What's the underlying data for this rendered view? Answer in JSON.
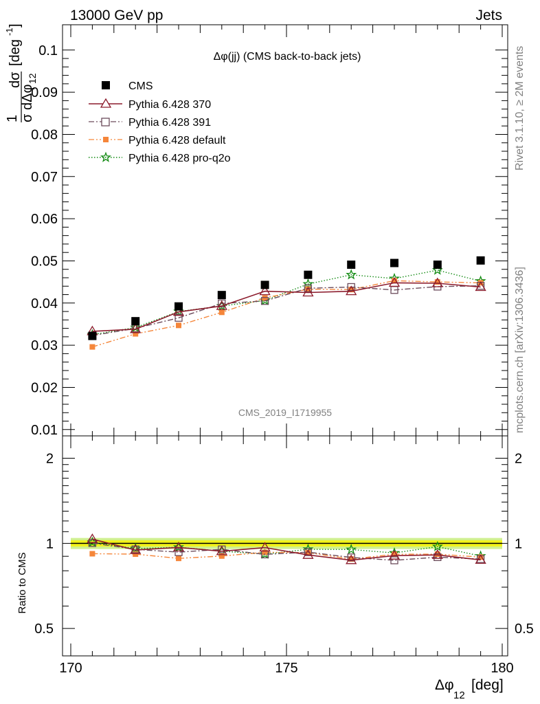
{
  "header": {
    "left": "13000 GeV pp",
    "right": "Jets",
    "side_top": "Rivet 3.1.10, ≥ 2M events",
    "side_bottom": "mcplots.cern.ch [arXiv:1306.3436]",
    "analysis_id": "CMS_2019_I1719955"
  },
  "legend_title": "Δφ(jj) (CMS back-to-back jets)",
  "colors": {
    "cms": "#000000",
    "p370": "#8b1a2b",
    "p391": "#6b4a5a",
    "pdefault": "#f5863a",
    "pq2o": "#128a12",
    "band_inner": "#f2f21a",
    "band_outer": "#d0f090"
  },
  "chart_data": [
    {
      "type": "scatter",
      "panel": "main",
      "ylabel": "1/σ dσ/dΔφ12 [deg⁻¹]",
      "xlim": [
        170,
        180
      ],
      "ylim": [
        0.0085,
        0.106
      ],
      "yticks": [
        0.01,
        0.02,
        0.03,
        0.04,
        0.05,
        0.06,
        0.07,
        0.08,
        0.09,
        0.1
      ],
      "ytick_labels": [
        "0.01",
        "0.02",
        "0.03",
        "0.04",
        "0.05",
        "0.06",
        "0.07",
        "0.08",
        "0.09",
        "0.1"
      ],
      "x": [
        170.5,
        171.5,
        172.5,
        173.5,
        174.5,
        175.5,
        176.5,
        177.5,
        178.5,
        179.5
      ],
      "legend_position": "top-left",
      "series": [
        {
          "name": "CMS",
          "key": "cms",
          "marker": "square-filled",
          "line": "none",
          "values": [
            0.0322,
            0.0357,
            0.0392,
            0.0419,
            0.0443,
            0.0467,
            0.0491,
            0.0495,
            0.0491,
            0.0501
          ]
        },
        {
          "name": "Pythia 6.428 370",
          "key": "p370",
          "marker": "triangle-open",
          "line": "solid",
          "values": [
            0.0333,
            0.0338,
            0.0379,
            0.0393,
            0.0428,
            0.0425,
            0.0428,
            0.0448,
            0.0447,
            0.0438
          ]
        },
        {
          "name": "Pythia 6.428 391",
          "key": "p391",
          "marker": "square-open",
          "line": "dashdot",
          "values": [
            0.0323,
            0.034,
            0.0365,
            0.0399,
            0.0405,
            0.0435,
            0.0438,
            0.0431,
            0.0439,
            0.0441
          ]
        },
        {
          "name": "Pythia 6.428 default",
          "key": "pdefault",
          "marker": "square-small",
          "line": "dashdot2",
          "values": [
            0.0296,
            0.0327,
            0.0347,
            0.0378,
            0.0412,
            0.0433,
            0.0432,
            0.0453,
            0.045,
            0.0448
          ]
        },
        {
          "name": "Pythia 6.428 pro-q2o",
          "key": "pq2o",
          "marker": "star",
          "line": "dotted",
          "values": [
            0.0325,
            0.0342,
            0.038,
            0.0393,
            0.0406,
            0.0445,
            0.0467,
            0.0458,
            0.0478,
            0.0452
          ]
        }
      ]
    },
    {
      "type": "line",
      "panel": "ratio",
      "ylabel": "Ratio to CMS",
      "xlabel": "Δφ12 [deg]",
      "xlim": [
        170,
        180
      ],
      "ylim": [
        0.4,
        2.4
      ],
      "yscale": "log",
      "yticks": [
        0.5,
        1,
        2
      ],
      "ytick_labels": [
        "0.5",
        "1",
        "2"
      ],
      "xticks": [
        170,
        175,
        180
      ],
      "xtick_labels": [
        "170",
        "175",
        "180"
      ],
      "x": [
        170.5,
        171.5,
        172.5,
        173.5,
        174.5,
        175.5,
        176.5,
        177.5,
        178.5,
        179.5
      ],
      "band_inner": [
        0.975,
        1.025
      ],
      "band_outer": [
        0.955,
        1.045
      ],
      "series": [
        {
          "key": "p370",
          "values": [
            1.035,
            0.947,
            0.967,
            0.938,
            0.966,
            0.91,
            0.872,
            0.905,
            0.91,
            0.874
          ]
        },
        {
          "key": "p391",
          "values": [
            1.003,
            0.952,
            0.931,
            0.952,
            0.914,
            0.931,
            0.892,
            0.871,
            0.894,
            0.88
          ]
        },
        {
          "key": "pdefault",
          "values": [
            0.919,
            0.916,
            0.885,
            0.902,
            0.93,
            0.927,
            0.88,
            0.915,
            0.916,
            0.894
          ]
        },
        {
          "key": "pq2o",
          "values": [
            1.009,
            0.958,
            0.969,
            0.938,
            0.916,
            0.953,
            0.951,
            0.925,
            0.974,
            0.902
          ]
        }
      ]
    }
  ]
}
